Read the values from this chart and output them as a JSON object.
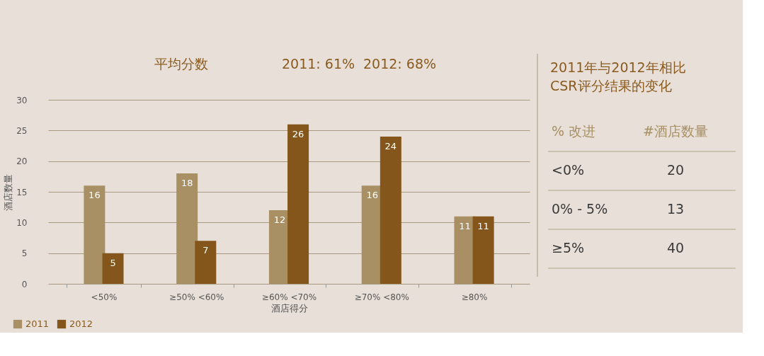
{
  "chart_data": [
    {
      "type": "bar",
      "title": "平均分数",
      "annotations": [
        "2011: 61%",
        "2012: 68%"
      ],
      "xlabel": "酒店得分",
      "ylabel": "酒店数量",
      "categories": [
        "<50%",
        "≥50% <60%",
        "≥60% <70%",
        "≥70% <80%",
        "≥80%"
      ],
      "series": [
        {
          "name": "2011",
          "color": "#a89064",
          "values": [
            16,
            18,
            12,
            16,
            11
          ]
        },
        {
          "name": "2012",
          "color": "#84561c",
          "values": [
            5,
            7,
            26,
            24,
            11
          ]
        }
      ],
      "ylim": [
        0,
        30
      ],
      "yticks": [
        0,
        5,
        10,
        15,
        20,
        25,
        30
      ],
      "grid": "y",
      "legend": "bottom left",
      "data_labels": true
    },
    {
      "type": "other",
      "title": "2011年与2012年相比\nCSR评分结果的变化",
      "annotations": [
        "% 改进",
        "#酒店数量",
        "<0%",
        "20",
        "0% - 5%",
        "13",
        "≥5%",
        "40"
      ]
    }
  ]
}
